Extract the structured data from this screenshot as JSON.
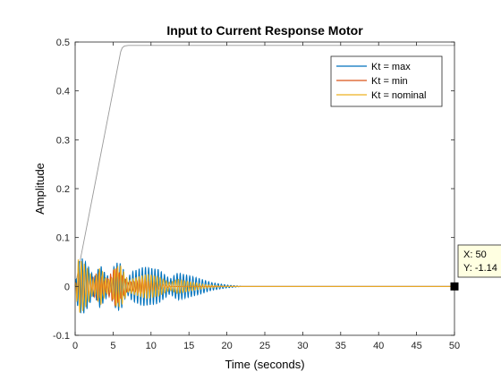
{
  "chart_data": {
    "type": "line",
    "title": "Input to Current Response Motor",
    "xlabel": "Time (seconds)",
    "ylabel": "Amplitude",
    "xlim": [
      0,
      50
    ],
    "ylim": [
      -0.1,
      0.5
    ],
    "xticks": [
      "0",
      "5",
      "10",
      "15",
      "20",
      "25",
      "30",
      "35",
      "40",
      "45",
      "50"
    ],
    "yticks": [
      "-0.1",
      "0",
      "0.1",
      "0.2",
      "0.3",
      "0.4",
      "0.5"
    ],
    "grid": false,
    "legend_position": "top-right",
    "input": {
      "color": "#999999",
      "x": [
        0,
        1,
        2,
        3,
        4,
        5,
        6,
        6.2,
        6.5,
        7,
        50
      ],
      "y": [
        0,
        0.08,
        0.16,
        0.24,
        0.32,
        0.4,
        0.48,
        0.488,
        0.492,
        0.493,
        0.493
      ]
    },
    "series": [
      {
        "name": "Kt = max",
        "color": "#0072BD",
        "oscillation": {
          "frequency_hz": 2.4,
          "envelope_t": [
            0,
            0.4,
            1,
            1.5,
            2.5,
            3.3,
            4,
            4.7,
            5.1,
            5.6,
            6.1,
            6.8,
            7.5,
            9,
            11,
            12.5,
            13.5,
            16,
            18,
            20,
            22,
            50
          ],
          "envelope_a": [
            0.0,
            0.05,
            0.058,
            0.048,
            0.018,
            0.045,
            0.025,
            0.018,
            0.04,
            0.05,
            0.046,
            0.015,
            0.03,
            0.04,
            0.035,
            0.015,
            0.028,
            0.018,
            0.008,
            0.003,
            0.0,
            0.0
          ]
        }
      },
      {
        "name": "Kt = min",
        "color": "#D95319",
        "oscillation": {
          "frequency_hz": 2.6,
          "envelope_t": [
            0,
            0.4,
            1,
            2,
            3,
            4,
            5.3,
            6,
            7,
            9,
            11,
            13,
            50
          ],
          "envelope_a": [
            0.0,
            0.04,
            0.045,
            0.012,
            0.03,
            0.01,
            0.04,
            0.025,
            0.008,
            0.015,
            0.006,
            0.0,
            0.0
          ]
        }
      },
      {
        "name": "Kt = nominal",
        "color": "#EDB120",
        "oscillation": {
          "frequency_hz": 2.5,
          "envelope_t": [
            0,
            0.4,
            1,
            1.5,
            2.5,
            3.3,
            4,
            4.7,
            5.3,
            6,
            7,
            8,
            9.5,
            11,
            12.5,
            13.5,
            15,
            17,
            19,
            21,
            50
          ],
          "envelope_a": [
            0.0,
            0.055,
            0.05,
            0.04,
            0.012,
            0.04,
            0.018,
            0.012,
            0.04,
            0.042,
            0.012,
            0.018,
            0.025,
            0.02,
            0.008,
            0.015,
            0.01,
            0.004,
            0.001,
            0.0,
            0.0
          ]
        }
      }
    ],
    "datatip": {
      "x": 50,
      "y_text": "-1.14",
      "lines": [
        "X: 50",
        "Y: -1.14"
      ]
    }
  }
}
